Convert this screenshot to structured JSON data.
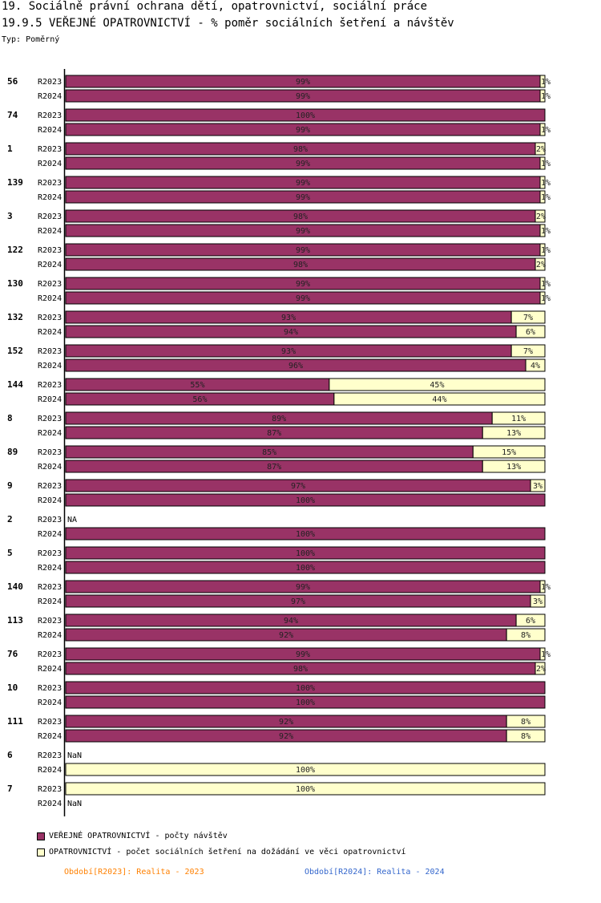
{
  "header": {
    "title_line1": "19. Sociálně právní ochrana dětí, opatrovnictví, sociální práce",
    "title_line2": "19.9.5 VEŘEJNÉ OPATROVNICTVÍ - % poměr sociálních šetření a návštěv",
    "type_label": "Typ: Poměrný"
  },
  "legend": {
    "series1_label": "VEŘEJNÉ OPATROVNICTVÍ - počty návštěv",
    "series2_label": "OPATROVNICTVÍ - počet sociálních šetření na dožádání ve věci opatrovnictví",
    "period1": "Období[R2023]: Realita - 2023",
    "period2": "Období[R2024]: Realita - 2024"
  },
  "colors": {
    "series1": "#993366",
    "series2": "#ffffcc",
    "period1": "#ff8000",
    "period2": "#3366cc"
  },
  "chart_data": {
    "type": "bar",
    "orientation": "horizontal",
    "stacked_percent": true,
    "series_names": [
      "VEŘEJNÉ OPATROVNICTVÍ - počty návštěv",
      "OPATROVNICTVÍ - počet sociálních šetření na dožádání ve věci opatrovnictví"
    ],
    "groups": [
      {
        "id": "56",
        "rows": [
          {
            "period": "R2023",
            "values": [
              99,
              1
            ]
          },
          {
            "period": "R2024",
            "values": [
              99,
              1
            ]
          }
        ]
      },
      {
        "id": "74",
        "rows": [
          {
            "period": "R2023",
            "values": [
              100,
              0
            ]
          },
          {
            "period": "R2024",
            "values": [
              99,
              1
            ]
          }
        ]
      },
      {
        "id": "1",
        "rows": [
          {
            "period": "R2023",
            "values": [
              98,
              2
            ]
          },
          {
            "period": "R2024",
            "values": [
              99,
              1
            ]
          }
        ]
      },
      {
        "id": "139",
        "rows": [
          {
            "period": "R2023",
            "values": [
              99,
              1
            ]
          },
          {
            "period": "R2024",
            "values": [
              99,
              1
            ]
          }
        ]
      },
      {
        "id": "3",
        "rows": [
          {
            "period": "R2023",
            "values": [
              98,
              2
            ]
          },
          {
            "period": "R2024",
            "values": [
              99,
              1
            ]
          }
        ]
      },
      {
        "id": "122",
        "rows": [
          {
            "period": "R2023",
            "values": [
              99,
              1
            ]
          },
          {
            "period": "R2024",
            "values": [
              98,
              2
            ]
          }
        ]
      },
      {
        "id": "130",
        "rows": [
          {
            "period": "R2023",
            "values": [
              99,
              1
            ]
          },
          {
            "period": "R2024",
            "values": [
              99,
              1
            ]
          }
        ]
      },
      {
        "id": "132",
        "rows": [
          {
            "period": "R2023",
            "values": [
              93,
              7
            ]
          },
          {
            "period": "R2024",
            "values": [
              94,
              6
            ]
          }
        ]
      },
      {
        "id": "152",
        "rows": [
          {
            "period": "R2023",
            "values": [
              93,
              7
            ]
          },
          {
            "period": "R2024",
            "values": [
              96,
              4
            ]
          }
        ]
      },
      {
        "id": "144",
        "rows": [
          {
            "period": "R2023",
            "values": [
              55,
              45
            ]
          },
          {
            "period": "R2024",
            "values": [
              56,
              44
            ]
          }
        ]
      },
      {
        "id": "8",
        "rows": [
          {
            "period": "R2023",
            "values": [
              89,
              11
            ]
          },
          {
            "period": "R2024",
            "values": [
              87,
              13
            ]
          }
        ]
      },
      {
        "id": "89",
        "rows": [
          {
            "period": "R2023",
            "values": [
              85,
              15
            ]
          },
          {
            "period": "R2024",
            "values": [
              87,
              13
            ]
          }
        ]
      },
      {
        "id": "9",
        "rows": [
          {
            "period": "R2023",
            "values": [
              97,
              3
            ]
          },
          {
            "period": "R2024",
            "values": [
              100,
              0
            ]
          }
        ]
      },
      {
        "id": "2",
        "rows": [
          {
            "period": "R2023",
            "values": null,
            "note": "NA"
          },
          {
            "period": "R2024",
            "values": [
              100,
              0
            ]
          }
        ]
      },
      {
        "id": "5",
        "rows": [
          {
            "period": "R2023",
            "values": [
              100,
              0
            ]
          },
          {
            "period": "R2024",
            "values": [
              100,
              0
            ]
          }
        ]
      },
      {
        "id": "140",
        "rows": [
          {
            "period": "R2023",
            "values": [
              99,
              1
            ]
          },
          {
            "period": "R2024",
            "values": [
              97,
              3
            ]
          }
        ]
      },
      {
        "id": "113",
        "rows": [
          {
            "period": "R2023",
            "values": [
              94,
              6
            ]
          },
          {
            "period": "R2024",
            "values": [
              92,
              8
            ]
          }
        ]
      },
      {
        "id": "76",
        "rows": [
          {
            "period": "R2023",
            "values": [
              99,
              1
            ]
          },
          {
            "period": "R2024",
            "values": [
              98,
              2
            ]
          }
        ]
      },
      {
        "id": "10",
        "rows": [
          {
            "period": "R2023",
            "values": [
              100,
              0
            ]
          },
          {
            "period": "R2024",
            "values": [
              100,
              0
            ]
          }
        ]
      },
      {
        "id": "111",
        "rows": [
          {
            "period": "R2023",
            "values": [
              92,
              8
            ]
          },
          {
            "period": "R2024",
            "values": [
              92,
              8
            ]
          }
        ]
      },
      {
        "id": "6",
        "rows": [
          {
            "period": "R2023",
            "values": null,
            "note": "NaN"
          },
          {
            "period": "R2024",
            "values": [
              0,
              100
            ]
          }
        ]
      },
      {
        "id": "7",
        "rows": [
          {
            "period": "R2023",
            "values": [
              0,
              100
            ]
          },
          {
            "period": "R2024",
            "values": null,
            "note": "NaN"
          }
        ]
      }
    ],
    "xlim": [
      0,
      100
    ],
    "grid": false,
    "legend_position": "bottom-left"
  }
}
